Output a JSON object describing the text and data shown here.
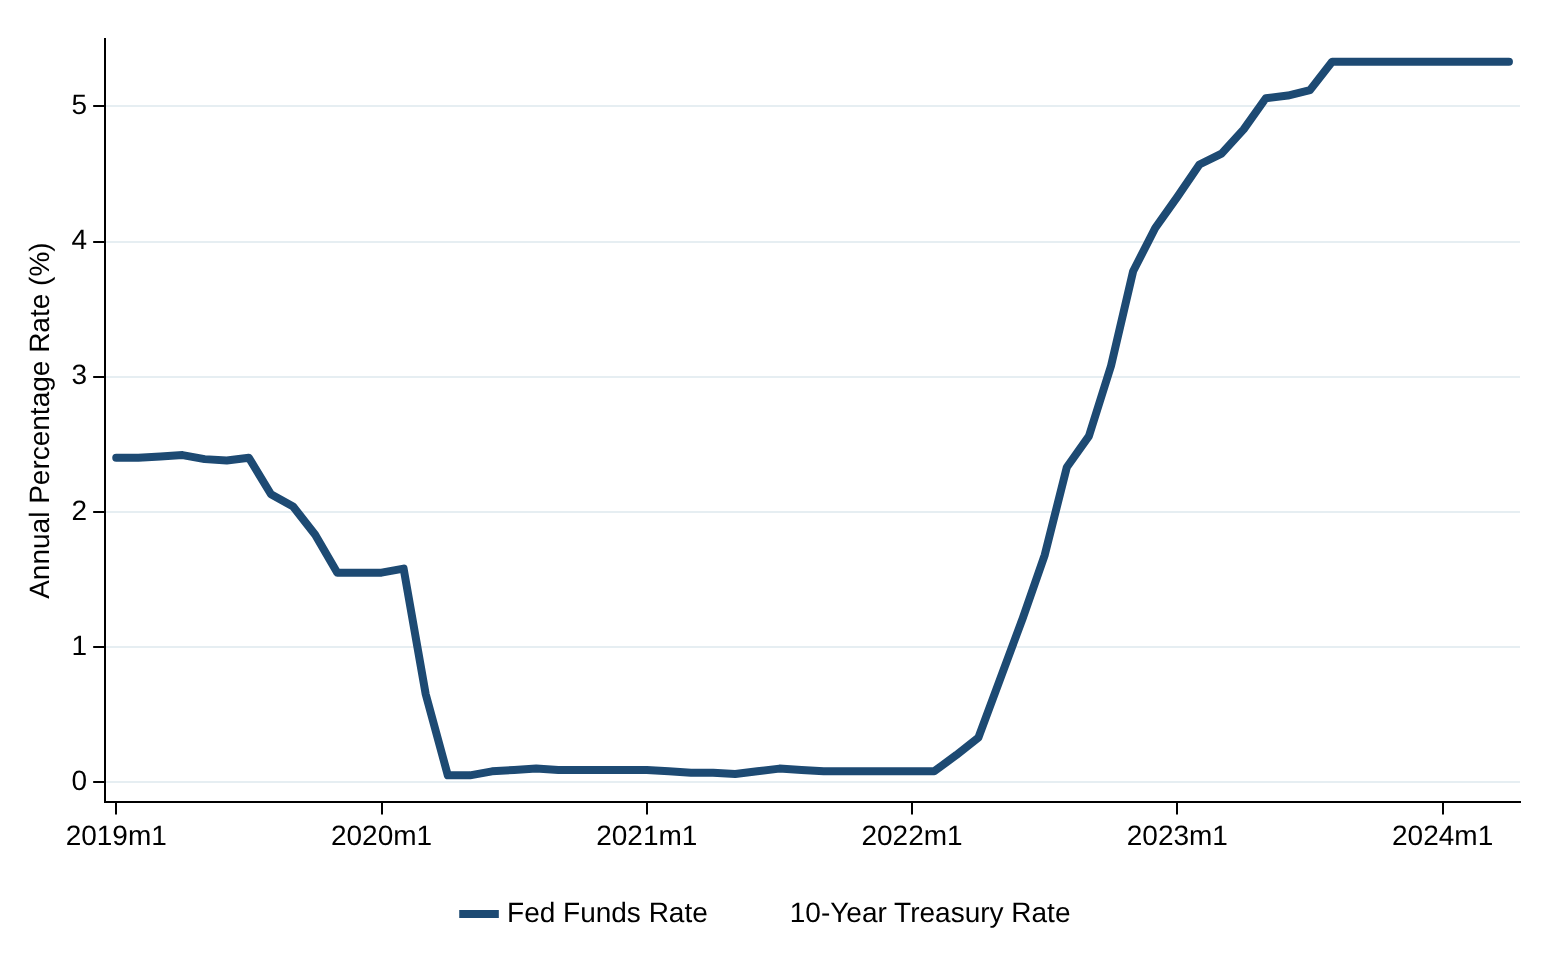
{
  "chart_data": {
    "type": "line",
    "ylabel": "Annual Percentage Rate (%)",
    "categories": [
      "2019m1",
      null,
      null,
      null,
      null,
      null,
      null,
      null,
      null,
      null,
      null,
      null,
      "2020m1",
      null,
      null,
      null,
      null,
      null,
      null,
      null,
      null,
      null,
      null,
      null,
      "2021m1",
      null,
      null,
      null,
      null,
      null,
      null,
      null,
      null,
      null,
      null,
      null,
      "2022m1",
      null,
      null,
      null,
      null,
      null,
      null,
      null,
      null,
      null,
      null,
      null,
      "2023m1",
      null,
      null,
      null,
      null,
      null,
      null,
      null,
      null,
      null,
      null,
      null,
      "2024m1",
      null,
      null,
      null
    ],
    "series": [
      {
        "name": "Fed Funds Rate",
        "color": "#1d4a73",
        "values": [
          2.4,
          2.4,
          2.41,
          2.42,
          2.39,
          2.38,
          2.4,
          2.13,
          2.04,
          1.83,
          1.55,
          1.55,
          1.55,
          1.58,
          0.65,
          0.05,
          0.05,
          0.08,
          0.09,
          0.1,
          0.09,
          0.09,
          0.09,
          0.09,
          0.09,
          0.08,
          0.07,
          0.07,
          0.06,
          0.08,
          0.1,
          0.09,
          0.08,
          0.08,
          0.08,
          0.08,
          0.08,
          0.08,
          0.2,
          0.33,
          0.77,
          1.21,
          1.68,
          2.33,
          2.56,
          3.08,
          3.78,
          4.1,
          4.33,
          4.57,
          4.65,
          4.83,
          5.06,
          5.08,
          5.12,
          5.33,
          5.33,
          5.33,
          5.33,
          5.33,
          5.33,
          5.33,
          5.33,
          5.33
        ]
      },
      {
        "name": "10-Year Treasury Rate",
        "values": [
          null,
          null,
          null,
          null,
          null,
          null,
          null,
          null,
          null,
          null,
          null,
          null,
          null,
          null,
          null,
          null,
          null,
          null,
          null,
          null,
          null,
          null,
          null,
          null,
          null,
          null,
          null,
          null,
          null,
          null,
          null,
          null,
          null,
          null,
          null,
          null,
          null,
          null,
          null,
          null,
          null,
          null,
          null,
          null,
          null,
          null,
          null,
          null,
          null,
          null,
          null,
          null,
          null,
          null,
          null,
          null,
          null,
          null,
          null,
          null,
          null,
          null,
          null,
          null
        ]
      }
    ],
    "ylim": [
      -0.15,
      5.5
    ],
    "yticks": [
      0,
      1,
      2,
      3,
      4,
      5
    ],
    "grid": "y",
    "legend": "bottom",
    "marker": "none",
    "line_style": "solid"
  }
}
